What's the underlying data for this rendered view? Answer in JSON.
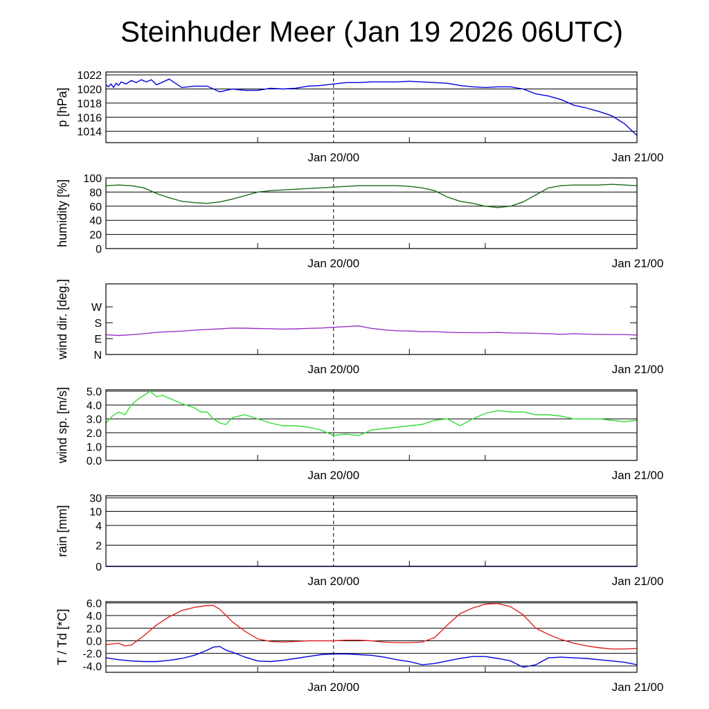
{
  "title": "Steinhuder Meer (Jan 19 2026 06UTC)",
  "chart_data": [
    {
      "type": "line",
      "ylabel": "p [hPa]",
      "ylim": [
        1012.4,
        1022.4
      ],
      "grid": true,
      "ytick_values": [
        1014,
        1016,
        1018,
        1020,
        1022
      ],
      "ytick_labels": [
        "1014",
        "1016",
        "1018",
        "1020",
        "1022"
      ],
      "xlim_hours": [
        0,
        42
      ],
      "x_tick_labels": [
        {
          "label": "Jan 20/00"
        },
        {
          "label": "Jan 21/00"
        }
      ],
      "series": [
        {
          "color": "#0000dd",
          "x": [
            0,
            0.2,
            0.4,
            0.6,
            0.8,
            1,
            1.2,
            1.6,
            2,
            2.4,
            2.8,
            3.2,
            3.6,
            4,
            4.4,
            5,
            6,
            7,
            8,
            9,
            10,
            11,
            12,
            13,
            14,
            15,
            16,
            17,
            18,
            19,
            20,
            21,
            22,
            23,
            24,
            25,
            26,
            27,
            28,
            29,
            30,
            31,
            32,
            33,
            34,
            35,
            36,
            37,
            38,
            39,
            40,
            41,
            42
          ],
          "values": [
            1020.6,
            1020.3,
            1020.7,
            1020.2,
            1020.8,
            1020.5,
            1021.0,
            1020.7,
            1021.2,
            1020.9,
            1021.3,
            1021.0,
            1021.3,
            1020.6,
            1020.9,
            1021.4,
            1020.2,
            1020.4,
            1020.4,
            1019.6,
            1020.0,
            1019.8,
            1019.8,
            1020.1,
            1020.0,
            1020.1,
            1020.4,
            1020.5,
            1020.7,
            1020.9,
            1020.9,
            1021.0,
            1021.0,
            1021.0,
            1021.1,
            1021.0,
            1020.9,
            1020.8,
            1020.5,
            1020.3,
            1020.2,
            1020.3,
            1020.3,
            1020.0,
            1019.3,
            1019.0,
            1018.5,
            1017.7,
            1017.3,
            1016.8,
            1016.2,
            1015.1,
            1013.4
          ]
        }
      ]
    },
    {
      "type": "line",
      "ylabel": "humidity [%]",
      "ylim": [
        0,
        100
      ],
      "grid": true,
      "ytick_values": [
        0,
        20,
        40,
        60,
        80,
        100
      ],
      "ytick_labels": [
        "0",
        "20",
        "40",
        "60",
        "80",
        "100"
      ],
      "xlim_hours": [
        0,
        42
      ],
      "x_tick_labels": [
        {
          "label": "Jan 20/00"
        },
        {
          "label": "Jan 21/00"
        }
      ],
      "series": [
        {
          "color": "#1a6b1a",
          "x": [
            0,
            1,
            2,
            3,
            4,
            5,
            6,
            7,
            8,
            9,
            10,
            11,
            12,
            13,
            14,
            15,
            16,
            17,
            18,
            19,
            20,
            21,
            22,
            23,
            24,
            25,
            26,
            27,
            28,
            29,
            30,
            31,
            32,
            33,
            34,
            35,
            36,
            37,
            38,
            39,
            40,
            41,
            42
          ],
          "values": [
            89,
            90,
            89,
            86,
            78,
            72,
            67,
            65,
            64,
            66,
            70,
            75,
            80,
            82,
            83,
            84,
            85,
            86,
            87,
            88,
            89,
            89,
            89,
            89,
            88,
            86,
            82,
            73,
            67,
            64,
            60,
            58,
            60,
            66,
            76,
            86,
            89,
            90,
            90,
            90,
            91,
            90,
            89
          ]
        }
      ]
    },
    {
      "type": "line",
      "ylabel": "wind dir. [deg.]",
      "ylim": [
        0,
        400
      ],
      "grid": false,
      "ytick_values": [
        0,
        90,
        180,
        270
      ],
      "ytick_labels": [
        "N",
        "E",
        "S",
        "W"
      ],
      "xlim_hours": [
        0,
        42
      ],
      "x_tick_labels": [
        {
          "label": "Jan 20/00"
        },
        {
          "label": "Jan 21/00"
        }
      ],
      "series": [
        {
          "color": "#9932cc",
          "x": [
            0,
            1,
            2,
            3,
            4,
            5,
            6,
            7,
            8,
            9,
            10,
            11,
            12,
            13,
            14,
            15,
            16,
            17,
            18,
            19,
            20,
            21,
            22,
            23,
            24,
            25,
            26,
            27,
            28,
            29,
            30,
            31,
            32,
            33,
            34,
            35,
            36,
            37,
            38,
            39,
            40,
            41,
            42
          ],
          "values": [
            112,
            108,
            112,
            118,
            125,
            130,
            132,
            138,
            142,
            145,
            150,
            149,
            147,
            146,
            144,
            145,
            148,
            150,
            154,
            158,
            162,
            148,
            140,
            134,
            133,
            130,
            130,
            126,
            124,
            124,
            123,
            125,
            122,
            121,
            120,
            118,
            114,
            118,
            115,
            114,
            113,
            113,
            110
          ]
        }
      ]
    },
    {
      "type": "line",
      "ylabel": "wind sp. [m/s]",
      "ylim": [
        0,
        5.1
      ],
      "grid": true,
      "ytick_values": [
        0,
        1,
        2,
        3,
        4,
        5
      ],
      "ytick_labels": [
        "0.0",
        "1.0",
        "2.0",
        "3.0",
        "4.0",
        "5.0"
      ],
      "xlim_hours": [
        0,
        42
      ],
      "x_tick_labels": [
        {
          "label": "Jan 20/00"
        },
        {
          "label": "Jan 21/00"
        }
      ],
      "series": [
        {
          "color": "#33dd33",
          "x": [
            0,
            0.5,
            1,
            1.5,
            2,
            2.5,
            3,
            3.5,
            4,
            4.5,
            5,
            5.5,
            6,
            7,
            7.5,
            8,
            8.5,
            9,
            9.5,
            10,
            11,
            12,
            13,
            14,
            15,
            16,
            17,
            18,
            19,
            20,
            21,
            22,
            23,
            24,
            25,
            26,
            27,
            28,
            29,
            30,
            31,
            32,
            33,
            34,
            35,
            36,
            37,
            38,
            39,
            40,
            41,
            42
          ],
          "values": [
            2.7,
            3.2,
            3.5,
            3.3,
            4.0,
            4.4,
            4.7,
            5.0,
            4.6,
            4.7,
            4.5,
            4.3,
            4.1,
            3.8,
            3.5,
            3.5,
            3.0,
            2.7,
            2.6,
            3.1,
            3.3,
            3.0,
            2.7,
            2.5,
            2.5,
            2.4,
            2.2,
            1.8,
            1.9,
            1.8,
            2.2,
            2.3,
            2.4,
            2.5,
            2.6,
            2.9,
            3.0,
            2.5,
            3.0,
            3.4,
            3.6,
            3.5,
            3.5,
            3.3,
            3.3,
            3.2,
            3.0,
            3.0,
            3.0,
            2.9,
            2.8,
            2.9
          ]
        }
      ]
    },
    {
      "type": "line",
      "ylabel": "rain [mm]",
      "ylim": [
        0,
        30
      ],
      "grid": true,
      "scale": "nonlinear",
      "ytick_values": [
        0,
        2,
        4,
        10,
        30
      ],
      "ytick_labels": [
        "0",
        "2",
        "4",
        "10",
        "30"
      ],
      "xlim_hours": [
        0,
        42
      ],
      "x_tick_labels": [
        {
          "label": "Jan 20/00"
        },
        {
          "label": "Jan 21/00"
        }
      ],
      "series": [
        {
          "color": "#0000dd",
          "x": [
            0,
            42
          ],
          "values": [
            0,
            0
          ]
        }
      ]
    },
    {
      "type": "line",
      "ylabel": "T / Td [*C]",
      "ylim": [
        -5,
        6.2
      ],
      "grid": true,
      "ytick_values": [
        -4,
        -2,
        0,
        2,
        4,
        6
      ],
      "ytick_labels": [
        "-4.0",
        "-2.0",
        "0.0",
        "2.0",
        "4.0",
        "6.0"
      ],
      "xlim_hours": [
        0,
        42
      ],
      "x_tick_labels": [
        {
          "label": "Jan 20/00"
        },
        {
          "label": "Jan 21/00"
        }
      ],
      "series": [
        {
          "color": "#dd2222",
          "x": [
            0,
            1,
            1.5,
            2,
            3,
            4,
            5,
            6,
            7,
            8,
            8.5,
            9,
            9.5,
            10,
            11,
            12,
            13,
            14,
            15,
            16,
            17,
            18,
            19,
            20,
            21,
            22,
            23,
            24,
            25,
            26,
            27,
            28,
            29,
            30,
            31,
            32,
            33,
            34,
            35,
            36,
            37,
            38,
            39,
            40,
            41,
            42
          ],
          "values": [
            -0.6,
            -0.4,
            -0.8,
            -0.7,
            0.8,
            2.5,
            3.8,
            4.8,
            5.3,
            5.6,
            5.6,
            5.0,
            4.0,
            3.0,
            1.5,
            0.3,
            -0.1,
            -0.2,
            -0.1,
            0.0,
            0.0,
            0.0,
            0.1,
            0.1,
            0.0,
            -0.2,
            -0.3,
            -0.3,
            -0.2,
            0.5,
            2.5,
            4.3,
            5.2,
            5.8,
            5.9,
            5.4,
            4.1,
            2.0,
            1.0,
            0.2,
            -0.4,
            -0.8,
            -1.1,
            -1.3,
            -1.3,
            -1.2
          ]
        },
        {
          "color": "#0000dd",
          "x": [
            0,
            1,
            2,
            3,
            4,
            5,
            6,
            7,
            8,
            8.5,
            9,
            9.5,
            10,
            11,
            12,
            13,
            14,
            15,
            16,
            17,
            18,
            19,
            20,
            21,
            22,
            23,
            24,
            25,
            26,
            27,
            28,
            29,
            30,
            31,
            32,
            33,
            34,
            35,
            36,
            37,
            38,
            39,
            40,
            41,
            42
          ],
          "values": [
            -2.7,
            -3.0,
            -3.2,
            -3.3,
            -3.3,
            -3.1,
            -2.8,
            -2.3,
            -1.5,
            -1.0,
            -0.9,
            -1.5,
            -1.8,
            -2.6,
            -3.2,
            -3.3,
            -3.1,
            -2.8,
            -2.5,
            -2.2,
            -2.1,
            -2.1,
            -2.2,
            -2.3,
            -2.6,
            -3.0,
            -3.3,
            -3.8,
            -3.6,
            -3.2,
            -2.8,
            -2.5,
            -2.5,
            -2.8,
            -3.2,
            -4.2,
            -3.8,
            -2.7,
            -2.6,
            -2.7,
            -2.8,
            -3.0,
            -3.2,
            -3.4,
            -3.8
          ]
        }
      ]
    }
  ]
}
